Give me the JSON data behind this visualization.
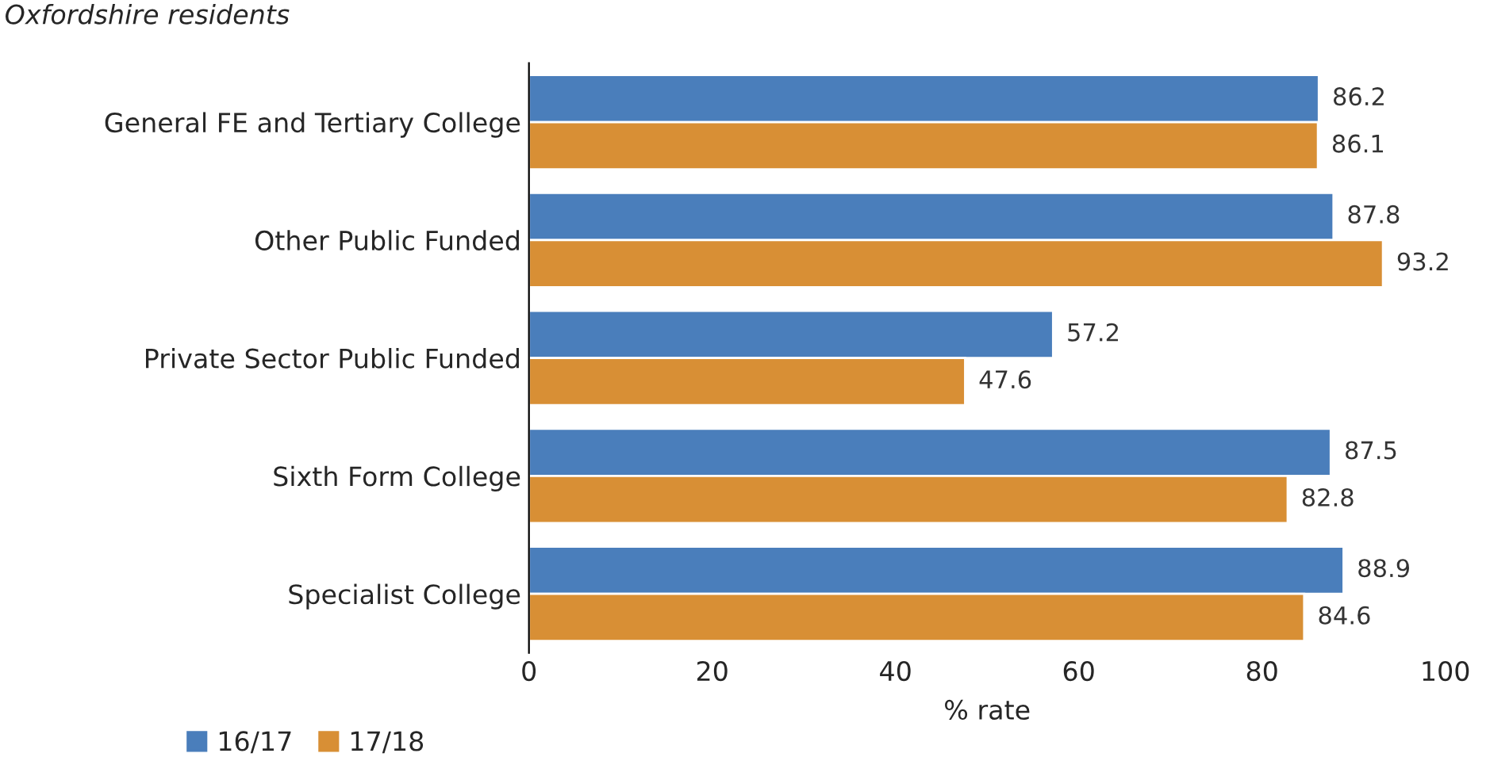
{
  "chart_data": {
    "type": "bar",
    "orientation": "horizontal",
    "subtitle": "Oxfordshire residents",
    "categories": [
      "General FE and Tertiary College",
      "Other Public Funded",
      "Private Sector Public Funded",
      "Sixth Form College",
      "Specialist College"
    ],
    "series": [
      {
        "name": "16/17",
        "color": "#4a7ebb",
        "values": [
          86.2,
          87.8,
          57.2,
          87.5,
          88.9
        ]
      },
      {
        "name": "17/18",
        "color": "#d88f35",
        "values": [
          86.1,
          93.2,
          47.6,
          82.8,
          84.6
        ]
      }
    ],
    "xlabel": "% rate",
    "xlim": [
      0,
      100
    ],
    "xticks": [
      0,
      20,
      40,
      60,
      80,
      100
    ],
    "data_labels": true,
    "grid": false,
    "legend": "bottom left"
  }
}
